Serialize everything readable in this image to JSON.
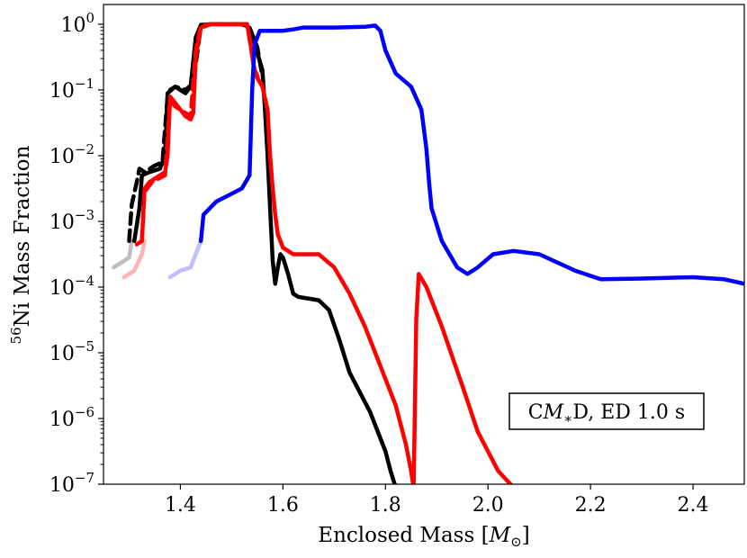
{
  "chart_data": {
    "type": "line",
    "title": "",
    "xlabel": {
      "prefix": "Enclosed Mass [",
      "symbol": "M",
      "subscript": "⊙",
      "suffix": "]"
    },
    "ylabel": {
      "superscript": "56",
      "text": "Ni Mass Fraction"
    },
    "xlim": [
      1.25,
      2.5
    ],
    "ylim_log10": [
      -7,
      0.3
    ],
    "grid": false,
    "x_ticks": [
      "1.4",
      "1.6",
      "1.8",
      "2.0",
      "2.2",
      "2.4"
    ],
    "x_tick_values": [
      1.4,
      1.6,
      1.8,
      2.0,
      2.2,
      2.4
    ],
    "y_ticks": [
      {
        "base": "10",
        "exp": "0",
        "value": 0
      },
      {
        "base": "10",
        "exp": "−1",
        "value": -1
      },
      {
        "base": "10",
        "exp": "−2",
        "value": -2
      },
      {
        "base": "10",
        "exp": "−3",
        "value": -3
      },
      {
        "base": "10",
        "exp": "−4",
        "value": -4
      },
      {
        "base": "10",
        "exp": "−5",
        "value": -5
      },
      {
        "base": "10",
        "exp": "−6",
        "value": -6
      },
      {
        "base": "10",
        "exp": "−7",
        "value": -7
      }
    ],
    "annotation": {
      "part1": "C",
      "symbol": "M",
      "subscript": "∗",
      "part2": "D, ED 1.0 s"
    },
    "series": [
      {
        "name": "black-solid",
        "color": "#000000",
        "opacity": 1,
        "dashed": false,
        "points": [
          [
            1.31,
            -3.3
          ],
          [
            1.32,
            -2.8
          ],
          [
            1.325,
            -2.3
          ],
          [
            1.34,
            -2.25
          ],
          [
            1.36,
            -2.2
          ],
          [
            1.37,
            -2.0
          ],
          [
            1.375,
            -1.05
          ],
          [
            1.39,
            -0.95
          ],
          [
            1.41,
            -1.05
          ],
          [
            1.42,
            -0.95
          ],
          [
            1.43,
            -0.2
          ],
          [
            1.44,
            -0.01
          ],
          [
            1.46,
            0.0
          ],
          [
            1.52,
            0.0
          ],
          [
            1.53,
            -0.03
          ],
          [
            1.545,
            -0.3
          ],
          [
            1.56,
            -0.7
          ],
          [
            1.565,
            -1.3
          ],
          [
            1.57,
            -2.0
          ],
          [
            1.575,
            -2.8
          ],
          [
            1.58,
            -3.6
          ],
          [
            1.585,
            -3.95
          ],
          [
            1.59,
            -3.7
          ],
          [
            1.595,
            -3.5
          ],
          [
            1.6,
            -3.55
          ],
          [
            1.61,
            -3.8
          ],
          [
            1.62,
            -4.1
          ],
          [
            1.63,
            -4.15
          ],
          [
            1.67,
            -4.2
          ],
          [
            1.69,
            -4.35
          ],
          [
            1.71,
            -4.8
          ],
          [
            1.73,
            -5.3
          ],
          [
            1.77,
            -5.9
          ],
          [
            1.8,
            -6.5
          ],
          [
            1.81,
            -6.8
          ],
          [
            1.82,
            -7.05
          ]
        ]
      },
      {
        "name": "black-dashed",
        "color": "#000000",
        "opacity": 1,
        "dashed": true,
        "points": [
          [
            1.3,
            -3.3
          ],
          [
            1.305,
            -2.75
          ],
          [
            1.315,
            -2.4
          ],
          [
            1.32,
            -2.2
          ],
          [
            1.33,
            -2.25
          ],
          [
            1.35,
            -2.15
          ],
          [
            1.365,
            -2.1
          ],
          [
            1.375,
            -1.1
          ],
          [
            1.38,
            -1.0
          ],
          [
            1.39,
            -0.95
          ],
          [
            1.41,
            -1.0
          ],
          [
            1.425,
            -0.9
          ],
          [
            1.44,
            -0.02
          ],
          [
            1.46,
            0.0
          ],
          [
            1.52,
            0.0
          ],
          [
            1.535,
            -0.05
          ],
          [
            1.55,
            -0.35
          ],
          [
            1.56,
            -0.8
          ]
        ]
      },
      {
        "name": "black-faded",
        "color": "#000000",
        "opacity": 0.25,
        "dashed": false,
        "points": [
          [
            1.27,
            -3.7
          ],
          [
            1.29,
            -3.6
          ],
          [
            1.3,
            -3.55
          ],
          [
            1.305,
            -3.3
          ]
        ]
      },
      {
        "name": "red-solid",
        "color": "#ff0000",
        "opacity": 1,
        "dashed": false,
        "points": [
          [
            1.315,
            -3.35
          ],
          [
            1.325,
            -3.3
          ],
          [
            1.33,
            -2.5
          ],
          [
            1.34,
            -2.4
          ],
          [
            1.37,
            -2.25
          ],
          [
            1.375,
            -2.0
          ],
          [
            1.38,
            -1.1
          ],
          [
            1.39,
            -1.2
          ],
          [
            1.41,
            -1.4
          ],
          [
            1.42,
            -1.45
          ],
          [
            1.425,
            -1.35
          ],
          [
            1.43,
            -0.5
          ],
          [
            1.44,
            -0.05
          ],
          [
            1.46,
            0.0
          ],
          [
            1.53,
            0.0
          ],
          [
            1.535,
            -0.2
          ],
          [
            1.545,
            -0.75
          ],
          [
            1.56,
            -0.95
          ],
          [
            1.57,
            -1.3
          ],
          [
            1.575,
            -2.0
          ],
          [
            1.58,
            -2.5
          ],
          [
            1.585,
            -2.9
          ],
          [
            1.59,
            -3.2
          ],
          [
            1.6,
            -3.4
          ],
          [
            1.62,
            -3.5
          ],
          [
            1.67,
            -3.5
          ],
          [
            1.7,
            -3.7
          ],
          [
            1.73,
            -4.1
          ],
          [
            1.76,
            -4.6
          ],
          [
            1.79,
            -5.2
          ],
          [
            1.82,
            -5.8
          ],
          [
            1.84,
            -6.4
          ],
          [
            1.85,
            -6.8
          ],
          [
            1.855,
            -7.05
          ]
        ]
      },
      {
        "name": "red-solid-2",
        "color": "#ff0000",
        "opacity": 1,
        "dashed": false,
        "points": [
          [
            1.855,
            -7.1
          ],
          [
            1.86,
            -4.5
          ],
          [
            1.865,
            -3.8
          ],
          [
            1.88,
            -4.0
          ],
          [
            1.91,
            -4.6
          ],
          [
            1.95,
            -5.5
          ],
          [
            1.98,
            -6.2
          ],
          [
            2.02,
            -6.8
          ],
          [
            2.05,
            -7.05
          ]
        ]
      },
      {
        "name": "red-dashed",
        "color": "#ff0000",
        "opacity": 1,
        "dashed": true,
        "points": [
          [
            1.325,
            -3.3
          ],
          [
            1.33,
            -2.55
          ],
          [
            1.345,
            -2.4
          ],
          [
            1.37,
            -2.3
          ],
          [
            1.38,
            -1.15
          ],
          [
            1.39,
            -1.25
          ],
          [
            1.42,
            -1.4
          ],
          [
            1.43,
            -0.4
          ],
          [
            1.44,
            -0.02
          ],
          [
            1.46,
            0.0
          ],
          [
            1.53,
            0.0
          ],
          [
            1.545,
            -0.7
          ],
          [
            1.56,
            -0.95
          ]
        ]
      },
      {
        "name": "red-faded",
        "color": "#ff0000",
        "opacity": 0.3,
        "dashed": false,
        "points": [
          [
            1.29,
            -3.85
          ],
          [
            1.31,
            -3.75
          ],
          [
            1.325,
            -3.5
          ],
          [
            1.33,
            -3.3
          ]
        ]
      },
      {
        "name": "blue-solid",
        "color": "#0000ff",
        "opacity": 1,
        "dashed": false,
        "points": [
          [
            1.44,
            -3.3
          ],
          [
            1.445,
            -2.9
          ],
          [
            1.47,
            -2.7
          ],
          [
            1.52,
            -2.5
          ],
          [
            1.535,
            -2.3
          ],
          [
            1.54,
            -1.0
          ],
          [
            1.545,
            -0.3
          ],
          [
            1.555,
            -0.1
          ],
          [
            1.6,
            -0.1
          ],
          [
            1.62,
            -0.08
          ],
          [
            1.64,
            -0.05
          ],
          [
            1.7,
            -0.05
          ],
          [
            1.76,
            -0.04
          ],
          [
            1.78,
            -0.02
          ],
          [
            1.79,
            -0.1
          ],
          [
            1.8,
            -0.4
          ],
          [
            1.82,
            -0.75
          ],
          [
            1.85,
            -0.95
          ],
          [
            1.87,
            -1.3
          ],
          [
            1.88,
            -1.9
          ],
          [
            1.885,
            -2.4
          ],
          [
            1.89,
            -2.8
          ],
          [
            1.91,
            -3.3
          ],
          [
            1.94,
            -3.7
          ],
          [
            1.96,
            -3.8
          ],
          [
            1.98,
            -3.7
          ],
          [
            2.01,
            -3.5
          ],
          [
            2.05,
            -3.45
          ],
          [
            2.1,
            -3.5
          ],
          [
            2.17,
            -3.75
          ],
          [
            2.22,
            -3.88
          ],
          [
            2.3,
            -3.87
          ],
          [
            2.4,
            -3.85
          ],
          [
            2.46,
            -3.88
          ],
          [
            2.5,
            -3.95
          ]
        ]
      },
      {
        "name": "blue-faded",
        "color": "#0000ff",
        "opacity": 0.25,
        "dashed": false,
        "points": [
          [
            1.38,
            -3.85
          ],
          [
            1.4,
            -3.75
          ],
          [
            1.42,
            -3.7
          ],
          [
            1.44,
            -3.3
          ]
        ]
      }
    ]
  }
}
